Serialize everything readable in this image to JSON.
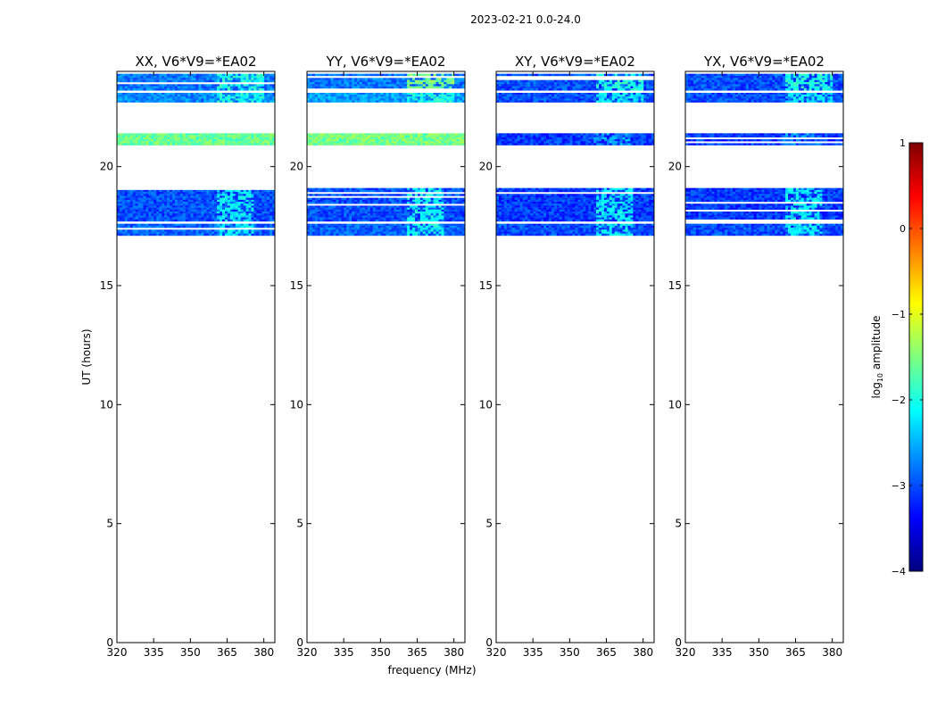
{
  "figure": {
    "suptitle": "2023-02-21 0.0-24.0",
    "xlabel": "frequency (MHz)",
    "ylabel": "UT (hours)"
  },
  "colorbar": {
    "label_main": "log",
    "label_sub": "10",
    "label_tail": " amplitude",
    "range": [
      -4,
      1
    ],
    "ticks": [
      1,
      0,
      -1,
      -2,
      -3,
      -4
    ],
    "tick_labels": [
      "1",
      "0",
      "−1",
      "−2",
      "−3",
      "−4"
    ],
    "colormap": "jet",
    "stops": [
      "#00007f",
      "#0000ff",
      "#007fff",
      "#00ffff",
      "#7fff7f",
      "#ffff00",
      "#ff7f00",
      "#ff0000",
      "#7f0000"
    ]
  },
  "chart_data": [
    {
      "type": "heatmap",
      "title": "XX, V6*V9=*EA02",
      "xlim": [
        320,
        384.5
      ],
      "ylim": [
        0,
        24
      ],
      "xticks": [
        320,
        335,
        350,
        365,
        380
      ],
      "yticks": [
        0,
        5,
        10,
        15,
        20
      ],
      "bands": [
        {
          "y": [
            23.2,
            23.9
          ],
          "level": -2.8,
          "bright_x": [
            361,
            380
          ],
          "bright_level": -2.0
        },
        {
          "y": [
            22.7,
            23.1
          ],
          "level": -2.7,
          "bright_x": [
            361,
            380
          ],
          "bright_level": -2.0
        },
        {
          "y": [
            20.9,
            21.4
          ],
          "level": -1.6,
          "bright_x": [
            320,
            384.5
          ],
          "bright_level": -1.6
        },
        {
          "y": [
            17.7,
            19.1
          ],
          "level": -3.0,
          "bright_x": [
            361,
            376
          ],
          "bright_level": -2.2
        },
        {
          "y": [
            17.1,
            17.6
          ],
          "level": -2.9,
          "bright_x": [
            361,
            376
          ],
          "bright_level": -2.2
        }
      ]
    },
    {
      "type": "heatmap",
      "title": "YY, V6*V9=*EA02",
      "xlim": [
        320,
        384.5
      ],
      "ylim": [
        0,
        24
      ],
      "xticks": [
        320,
        335,
        350,
        365,
        380
      ],
      "yticks": [
        0,
        5,
        10,
        15,
        20
      ],
      "bands": [
        {
          "y": [
            23.2,
            23.9
          ],
          "level": -2.8,
          "bright_x": [
            361,
            380
          ],
          "bright_level": -1.5
        },
        {
          "y": [
            22.7,
            23.1
          ],
          "level": -2.6,
          "bright_x": [
            361,
            380
          ],
          "bright_level": -2.0
        },
        {
          "y": [
            20.9,
            21.4
          ],
          "level": -1.6,
          "bright_x": [
            320,
            384.5
          ],
          "bright_level": -1.5
        },
        {
          "y": [
            17.7,
            19.1
          ],
          "level": -3.0,
          "bright_x": [
            361,
            376
          ],
          "bright_level": -2.1
        },
        {
          "y": [
            17.1,
            17.6
          ],
          "level": -2.9,
          "bright_x": [
            361,
            376
          ],
          "bright_level": -2.1
        }
      ]
    },
    {
      "type": "heatmap",
      "title": "XY, V6*V9=*EA02",
      "xlim": [
        320,
        384.5
      ],
      "ylim": [
        0,
        24
      ],
      "xticks": [
        320,
        335,
        350,
        365,
        380
      ],
      "yticks": [
        0,
        5,
        10,
        15,
        20
      ],
      "bands": [
        {
          "y": [
            23.2,
            23.9
          ],
          "level": -3.0,
          "bright_x": [
            361,
            380
          ],
          "bright_level": -2.0
        },
        {
          "y": [
            22.7,
            23.1
          ],
          "level": -3.0,
          "bright_x": [
            361,
            380
          ],
          "bright_level": -2.2
        },
        {
          "y": [
            20.9,
            21.4
          ],
          "level": -3.1,
          "bright_x": [
            360,
            375
          ],
          "bright_level": -2.6
        },
        {
          "y": [
            17.7,
            19.1
          ],
          "level": -3.1,
          "bright_x": [
            361,
            376
          ],
          "bright_level": -2.2
        },
        {
          "y": [
            17.1,
            17.6
          ],
          "level": -3.0,
          "bright_x": [
            361,
            376
          ],
          "bright_level": -2.2
        }
      ]
    },
    {
      "type": "heatmap",
      "title": "YX, V6*V9=*EA02",
      "xlim": [
        320,
        384.5
      ],
      "ylim": [
        0,
        24
      ],
      "xticks": [
        320,
        335,
        350,
        365,
        380
      ],
      "yticks": [
        0,
        5,
        10,
        15,
        20
      ],
      "bands": [
        {
          "y": [
            23.2,
            23.9
          ],
          "level": -3.0,
          "bright_x": [
            361,
            380
          ],
          "bright_level": -2.0
        },
        {
          "y": [
            22.7,
            23.1
          ],
          "level": -3.0,
          "bright_x": [
            361,
            380
          ],
          "bright_level": -2.2
        },
        {
          "y": [
            20.9,
            21.4
          ],
          "level": -3.1,
          "bright_x": [
            360,
            375
          ],
          "bright_level": -2.6
        },
        {
          "y": [
            17.7,
            19.1
          ],
          "level": -3.1,
          "bright_x": [
            361,
            376
          ],
          "bright_level": -2.2
        },
        {
          "y": [
            17.1,
            17.6
          ],
          "level": -3.0,
          "bright_x": [
            361,
            376
          ],
          "bright_level": -2.2
        }
      ]
    }
  ]
}
